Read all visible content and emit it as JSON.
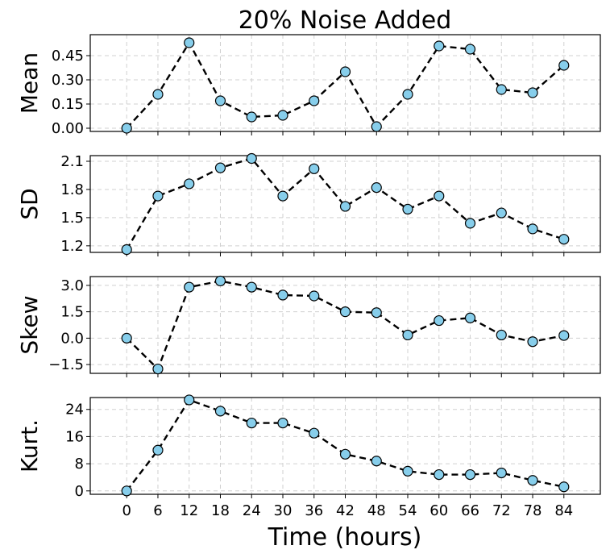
{
  "chart_data": {
    "type": "line",
    "title": "20% Noise Added",
    "xlabel": "Time (hours)",
    "x": [
      0,
      6,
      12,
      18,
      24,
      30,
      36,
      42,
      48,
      54,
      60,
      66,
      72,
      78,
      84
    ],
    "x_ticks": [
      "0",
      "6",
      "12",
      "18",
      "24",
      "30",
      "36",
      "42",
      "48",
      "54",
      "60",
      "66",
      "72",
      "78",
      "84"
    ],
    "grid": true,
    "line_color": "#000000",
    "marker_color": "#87ceeb",
    "grid_color": "#d0d0d0",
    "panels": [
      {
        "ylabel": "Mean",
        "ylim": [
          -0.02,
          0.58
        ],
        "y_ticks": [
          0.0,
          0.15,
          0.3,
          0.45
        ],
        "y_tick_labels": [
          "0.00",
          "0.15",
          "0.30",
          "0.45"
        ],
        "values": [
          0.0,
          0.21,
          0.53,
          0.17,
          0.07,
          0.08,
          0.17,
          0.35,
          0.01,
          0.21,
          0.51,
          0.49,
          0.24,
          0.22,
          0.39
        ]
      },
      {
        "ylabel": "SD",
        "ylim": [
          1.13,
          2.16
        ],
        "y_ticks": [
          1.2,
          1.5,
          1.8,
          2.1
        ],
        "y_tick_labels": [
          "1.2",
          "1.5",
          "1.8",
          "2.1"
        ],
        "values": [
          1.16,
          1.73,
          1.86,
          2.03,
          2.13,
          1.73,
          2.02,
          1.62,
          1.82,
          1.59,
          1.73,
          1.44,
          1.55,
          1.38,
          1.27
        ]
      },
      {
        "ylabel": "Skew",
        "ylim": [
          -2.0,
          3.5
        ],
        "y_ticks": [
          -1.5,
          0.0,
          1.5,
          3.0
        ],
        "y_tick_labels": [
          "−1.5",
          "0.0",
          "1.5",
          "3.0"
        ],
        "values": [
          0.0,
          -1.75,
          2.9,
          3.25,
          2.9,
          2.45,
          2.4,
          1.5,
          1.45,
          0.18,
          1.0,
          1.15,
          0.18,
          -0.2,
          0.15
        ]
      },
      {
        "ylabel": "Kurt.",
        "ylim": [
          -1.0,
          27.5
        ],
        "y_ticks": [
          0,
          8,
          16,
          24
        ],
        "y_tick_labels": [
          "0",
          "8",
          "16",
          "24"
        ],
        "values": [
          0.0,
          12.0,
          26.8,
          23.5,
          20.0,
          20.0,
          17.0,
          10.8,
          8.8,
          5.8,
          4.8,
          4.8,
          5.3,
          3.1,
          1.2
        ]
      }
    ]
  }
}
